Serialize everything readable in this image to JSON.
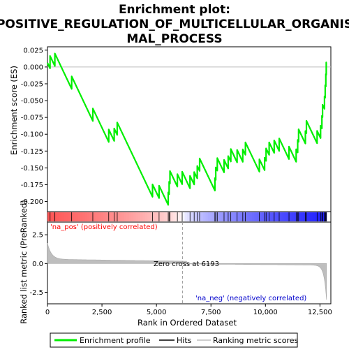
{
  "chart_data": {
    "type": "line",
    "title_lines": [
      "Enrichment plot:",
      "POSITIVE_REGULATION_OF_MULTICELLULAR_ORGANIS",
      "MAL_PROCESS"
    ],
    "xlabel": "Rank in Ordered Dataset",
    "ylabel_top": "Enrichment score (ES)",
    "ylabel_bottom": "Ranked list metric (PreRanked)",
    "xlim": [
      0,
      13000
    ],
    "ylim_top": [
      -0.215,
      0.03
    ],
    "ylim_bottom": [
      -3.5,
      3.6
    ],
    "x_ticks": [
      0,
      2500,
      5000,
      7500,
      10000,
      12500
    ],
    "x_tick_labels": [
      "0",
      "2,500",
      "5,000",
      "7,500",
      "10,000",
      "12,500"
    ],
    "y_ticks_top": [
      0.025,
      0.0,
      -0.025,
      -0.05,
      -0.075,
      -0.1,
      -0.125,
      -0.15,
      -0.175,
      -0.2
    ],
    "y_tick_labels_top": [
      "0.025",
      "0.000",
      "-0.025",
      "-0.050",
      "-0.075",
      "-0.100",
      "-0.125",
      "-0.150",
      "-0.175",
      "-0.200"
    ],
    "y_ticks_bottom": [
      2.5,
      0.0,
      -2.5
    ],
    "y_tick_labels_bottom": [
      "2.5",
      "0.0",
      "-2.5"
    ],
    "zero_cross_rank": 6193,
    "zero_cross_label": "Zero cross at 6193",
    "pos_label": "'na_pos' (positively correlated)",
    "neg_label": "'na_neg' (negatively correlated)",
    "n_genes": 12800,
    "hit_ranks": [
      120,
      340,
      1110,
      2080,
      2810,
      3060,
      3200,
      4820,
      5120,
      5540,
      5580,
      5620,
      5960,
      6180,
      6540,
      6730,
      6870,
      6980,
      7680,
      7720,
      7790,
      8100,
      8290,
      8410,
      8700,
      8960,
      9080,
      9720,
      9960,
      10030,
      10170,
      10400,
      10630,
      11080,
      11410,
      11480,
      11520,
      11830,
      11880,
      12370,
      12530,
      12590,
      12620,
      12710,
      12740,
      12770,
      12790
    ],
    "es_peak_min": -0.205,
    "es_peak_max": 0.02,
    "series": [
      {
        "name": "Enrichment profile",
        "color": "#00ee00"
      },
      {
        "name": "Hits",
        "color": "#000000"
      },
      {
        "name": "Ranking metric scores",
        "color": "#bebebe"
      }
    ],
    "legend_position": "bottom"
  }
}
